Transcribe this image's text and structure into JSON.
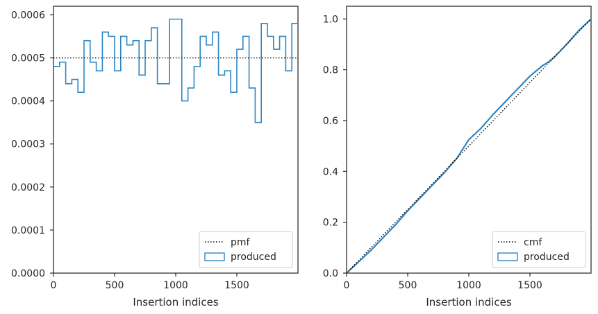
{
  "chart_data": [
    {
      "type": "step",
      "xlabel": "Insertion indices",
      "ylabel": "",
      "xlim": [
        0,
        2000
      ],
      "ylim": [
        0,
        0.00062
      ],
      "x_ticks": [
        0,
        500,
        1000,
        1500
      ],
      "x_tick_labels": [
        "0",
        "500",
        "1000",
        "1500"
      ],
      "y_ticks": [
        0,
        0.0001,
        0.0002,
        0.0003,
        0.0004,
        0.0005,
        0.0006
      ],
      "y_tick_labels": [
        "0.0000",
        "0.0001",
        "0.0002",
        "0.0003",
        "0.0004",
        "0.0005",
        "0.0006"
      ],
      "legend_position": "lower right",
      "pmf_value": 0.0005,
      "bin_edges": [
        0,
        50,
        100,
        150,
        200,
        250,
        300,
        350,
        400,
        450,
        500,
        550,
        600,
        650,
        700,
        750,
        800,
        850,
        900,
        950,
        1000,
        1050,
        1100,
        1150,
        1200,
        1250,
        1300,
        1350,
        1400,
        1450,
        1500,
        1550,
        1600,
        1650,
        1700,
        1750,
        1800,
        1850,
        1900,
        1950,
        2000
      ],
      "series": [
        {
          "name": "pmf",
          "style": "dotted",
          "color": "#000000"
        },
        {
          "name": "produced",
          "style": "step",
          "color": "#2e86c1",
          "values": [
            0.00048,
            0.00049,
            0.00044,
            0.00045,
            0.00042,
            0.00054,
            0.00049,
            0.00047,
            0.00056,
            0.00055,
            0.00047,
            0.00055,
            0.00053,
            0.00054,
            0.00046,
            0.00054,
            0.00057,
            0.00044,
            0.00044,
            0.00059,
            0.00059,
            0.0004,
            0.00043,
            0.00048,
            0.00055,
            0.00053,
            0.00056,
            0.00046,
            0.00047,
            0.00042,
            0.00052,
            0.00055,
            0.00043,
            0.00035,
            0.00058,
            0.00055,
            0.00052,
            0.00055,
            0.00047,
            0.00058
          ]
        }
      ]
    },
    {
      "type": "line",
      "xlabel": "Insertion indices",
      "ylabel": "",
      "xlim": [
        0,
        2000
      ],
      "ylim": [
        0,
        1.05
      ],
      "x_ticks": [
        0,
        500,
        1000,
        1500
      ],
      "x_tick_labels": [
        "0",
        "500",
        "1000",
        "1500"
      ],
      "y_ticks": [
        0,
        0.2,
        0.4,
        0.6,
        0.8,
        1.0
      ],
      "y_tick_labels": [
        "0.0",
        "0.2",
        "0.4",
        "0.6",
        "0.8",
        "1.0"
      ],
      "legend_position": "lower right",
      "series": [
        {
          "name": "cmf",
          "style": "dotted",
          "color": "#000000",
          "x": [
            0,
            2000
          ],
          "y": [
            0,
            1
          ]
        },
        {
          "name": "produced",
          "style": "step",
          "color": "#2e86c1",
          "x": [
            0,
            100,
            200,
            300,
            400,
            500,
            600,
            700,
            800,
            880,
            900,
            1000,
            1100,
            1200,
            1300,
            1400,
            1500,
            1600,
            1650,
            1700,
            1800,
            1900,
            2000
          ],
          "y": [
            0,
            0.045,
            0.09,
            0.14,
            0.19,
            0.245,
            0.295,
            0.345,
            0.395,
            0.44,
            0.45,
            0.525,
            0.57,
            0.625,
            0.675,
            0.725,
            0.775,
            0.815,
            0.83,
            0.85,
            0.9,
            0.955,
            1.0
          ]
        }
      ]
    }
  ]
}
